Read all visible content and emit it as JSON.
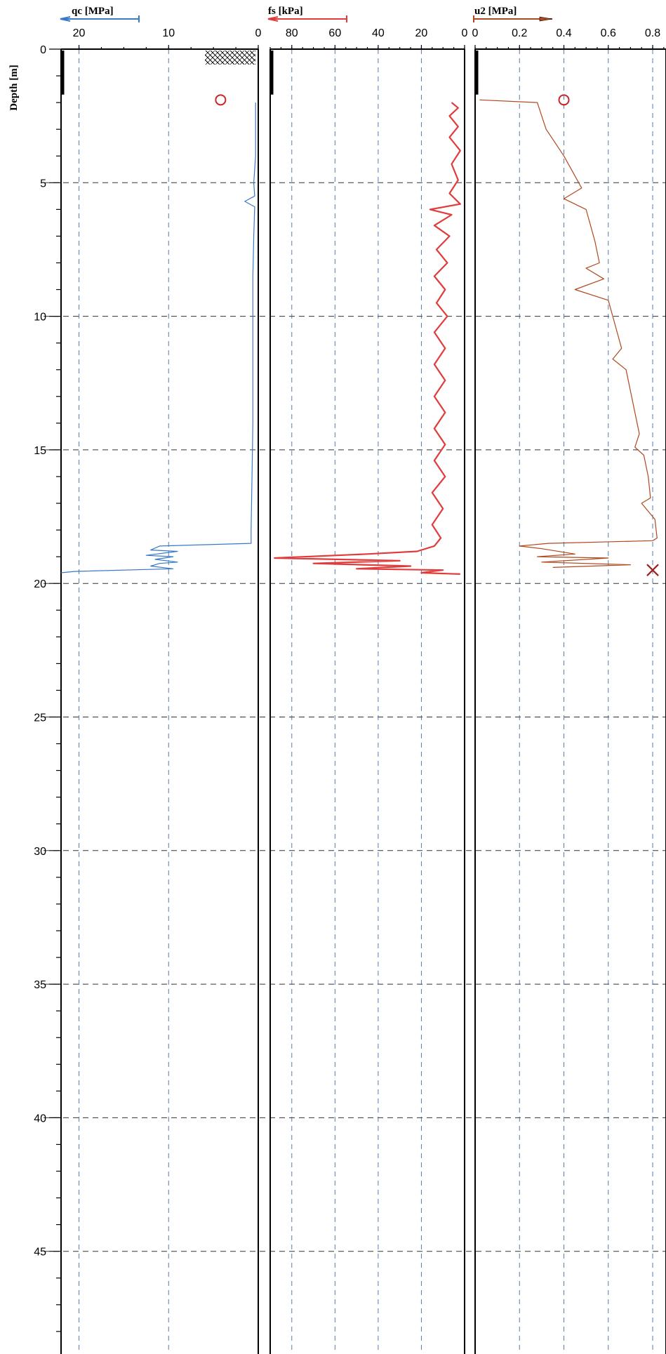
{
  "chart_data": {
    "type": "line",
    "y_axis": {
      "label": "Depth [m]",
      "range": [
        0,
        49
      ],
      "ticks": [
        0,
        5,
        10,
        15,
        20,
        25,
        30,
        35,
        40,
        45
      ],
      "reversed": true
    },
    "panels": [
      {
        "name": "qc",
        "title": "qc [MPa]",
        "color": "#3a78c8",
        "xlim": [
          22,
          0
        ],
        "ticks": [
          20,
          10,
          0
        ],
        "points": [
          [
            0.3,
            2.0
          ],
          [
            0.3,
            4.0
          ],
          [
            0.5,
            5.0
          ],
          [
            0.4,
            5.5
          ],
          [
            1.5,
            5.7
          ],
          [
            0.4,
            5.9
          ],
          [
            0.5,
            7.0
          ],
          [
            0.6,
            8.5
          ],
          [
            0.6,
            10.0
          ],
          [
            0.6,
            12.0
          ],
          [
            0.6,
            14.0
          ],
          [
            0.7,
            16.0
          ],
          [
            0.8,
            18.0
          ],
          [
            0.8,
            18.5
          ],
          [
            11.0,
            18.6
          ],
          [
            12.0,
            18.75
          ],
          [
            9.0,
            18.8
          ],
          [
            12.5,
            18.95
          ],
          [
            9.5,
            19.0
          ],
          [
            11.5,
            19.1
          ],
          [
            9.0,
            19.2
          ],
          [
            11.0,
            19.25
          ],
          [
            12.0,
            19.35
          ],
          [
            9.5,
            19.45
          ],
          [
            20.5,
            19.55
          ],
          [
            22.0,
            19.6
          ]
        ],
        "markers": [
          {
            "symbol": "O",
            "x": 4.2,
            "depth": 1.9,
            "color": "#c82828"
          }
        ]
      },
      {
        "name": "fs",
        "title": "fs [kPa]",
        "color": "#e03c3c",
        "xlim": [
          90,
          0
        ],
        "ticks": [
          80,
          60,
          40,
          20,
          0
        ],
        "points": [
          [
            6,
            2.0
          ],
          [
            3,
            2.2
          ],
          [
            7,
            2.5
          ],
          [
            3,
            2.9
          ],
          [
            7,
            3.3
          ],
          [
            2,
            3.8
          ],
          [
            6,
            4.3
          ],
          [
            3,
            4.9
          ],
          [
            7,
            5.4
          ],
          [
            2,
            5.8
          ],
          [
            16,
            6.0
          ],
          [
            6,
            6.2
          ],
          [
            14,
            6.6
          ],
          [
            7,
            7.0
          ],
          [
            13,
            7.5
          ],
          [
            8,
            8.0
          ],
          [
            14,
            8.5
          ],
          [
            9,
            9.0
          ],
          [
            13,
            9.5
          ],
          [
            8,
            10.0
          ],
          [
            14,
            10.6
          ],
          [
            9,
            11.2
          ],
          [
            14,
            11.8
          ],
          [
            9,
            12.4
          ],
          [
            14,
            13.0
          ],
          [
            9,
            13.6
          ],
          [
            14,
            14.2
          ],
          [
            9,
            14.8
          ],
          [
            14,
            15.4
          ],
          [
            9,
            16.0
          ],
          [
            15,
            16.6
          ],
          [
            10,
            17.2
          ],
          [
            15,
            17.8
          ],
          [
            11,
            18.3
          ],
          [
            14,
            18.6
          ],
          [
            22,
            18.8
          ],
          [
            45,
            18.9
          ],
          [
            88,
            19.05
          ],
          [
            30,
            19.15
          ],
          [
            70,
            19.25
          ],
          [
            25,
            19.35
          ],
          [
            50,
            19.45
          ],
          [
            10,
            19.5
          ],
          [
            20,
            19.6
          ],
          [
            2,
            19.65
          ]
        ],
        "markers": []
      },
      {
        "name": "u2",
        "title": "u2 [MPa]",
        "color": "#b0481e",
        "xlim": [
          0,
          0.86
        ],
        "ticks": [
          0,
          0.2,
          0.4,
          0.6,
          0.8
        ],
        "points": [
          [
            0.02,
            1.9
          ],
          [
            0.28,
            2.0
          ],
          [
            0.3,
            2.5
          ],
          [
            0.32,
            3.0
          ],
          [
            0.36,
            3.5
          ],
          [
            0.4,
            4.0
          ],
          [
            0.44,
            4.6
          ],
          [
            0.48,
            5.2
          ],
          [
            0.4,
            5.6
          ],
          [
            0.5,
            6.0
          ],
          [
            0.52,
            6.6
          ],
          [
            0.54,
            7.2
          ],
          [
            0.56,
            8.0
          ],
          [
            0.5,
            8.2
          ],
          [
            0.58,
            8.6
          ],
          [
            0.45,
            9.0
          ],
          [
            0.6,
            9.4
          ],
          [
            0.62,
            10.0
          ],
          [
            0.64,
            10.6
          ],
          [
            0.66,
            11.2
          ],
          [
            0.62,
            11.6
          ],
          [
            0.68,
            12.0
          ],
          [
            0.7,
            12.8
          ],
          [
            0.72,
            13.6
          ],
          [
            0.74,
            14.4
          ],
          [
            0.72,
            14.9
          ],
          [
            0.76,
            15.2
          ],
          [
            0.78,
            16.0
          ],
          [
            0.79,
            16.8
          ],
          [
            0.75,
            17.0
          ],
          [
            0.81,
            17.6
          ],
          [
            0.82,
            18.3
          ],
          [
            0.8,
            18.4
          ],
          [
            0.33,
            18.5
          ],
          [
            0.2,
            18.6
          ],
          [
            0.3,
            18.7
          ],
          [
            0.45,
            18.9
          ],
          [
            0.28,
            19.0
          ],
          [
            0.6,
            19.05
          ],
          [
            0.3,
            19.2
          ],
          [
            0.7,
            19.3
          ],
          [
            0.35,
            19.4
          ]
        ],
        "markers": [
          {
            "symbol": "O",
            "x": 0.4,
            "depth": 1.9,
            "color": "#c82828"
          },
          {
            "symbol": "X",
            "x": 0.8,
            "depth": 19.5,
            "color": "#a02020"
          }
        ]
      }
    ]
  }
}
